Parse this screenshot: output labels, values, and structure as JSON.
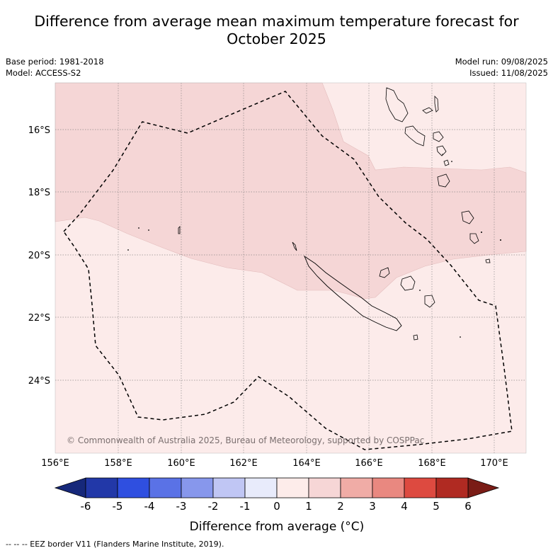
{
  "title_line1": "Difference from average mean maximum temperature forecast for",
  "title_line2": "October 2025",
  "base_period": "Base period: 1981-2018",
  "model": "Model: ACCESS-S2",
  "model_run": "Model run: 09/08/2025",
  "issued": "Issued: 11/08/2025",
  "copyright": "© Commonwealth of Australia 2025, Bureau of Meteorology, supported by COSPPac",
  "colorbar_label": "Difference from average (°C)",
  "footer_legend": "--  --  -- EEZ border V11 (Flanders Marine Institute, 2019).",
  "x_ticks": [
    "156°E",
    "158°E",
    "160°E",
    "162°E",
    "164°E",
    "166°E",
    "168°E",
    "170°E"
  ],
  "y_ticks": [
    "16°S",
    "18°S",
    "20°S",
    "22°S",
    "24°S"
  ],
  "colorbar": {
    "tick_labels": [
      "-6",
      "-5",
      "-4",
      "-3",
      "-2",
      "-1",
      "0",
      "1",
      "2",
      "3",
      "4",
      "5",
      "6"
    ],
    "colors": [
      "#2238a8",
      "#2f4fe0",
      "#5a72e6",
      "#8797ec",
      "#c0c6f4",
      "#e8ebfb",
      "#fdecea",
      "#f6d6d6",
      "#f0aca6",
      "#e98880",
      "#dd4a40",
      "#b02a22"
    ],
    "low_extend_color": "#16287a",
    "high_extend_color": "#7a1c16"
  },
  "map_fill_colors": {
    "weak_warm": "#fcebea",
    "moderate_warm": "#f5d6d6"
  }
}
